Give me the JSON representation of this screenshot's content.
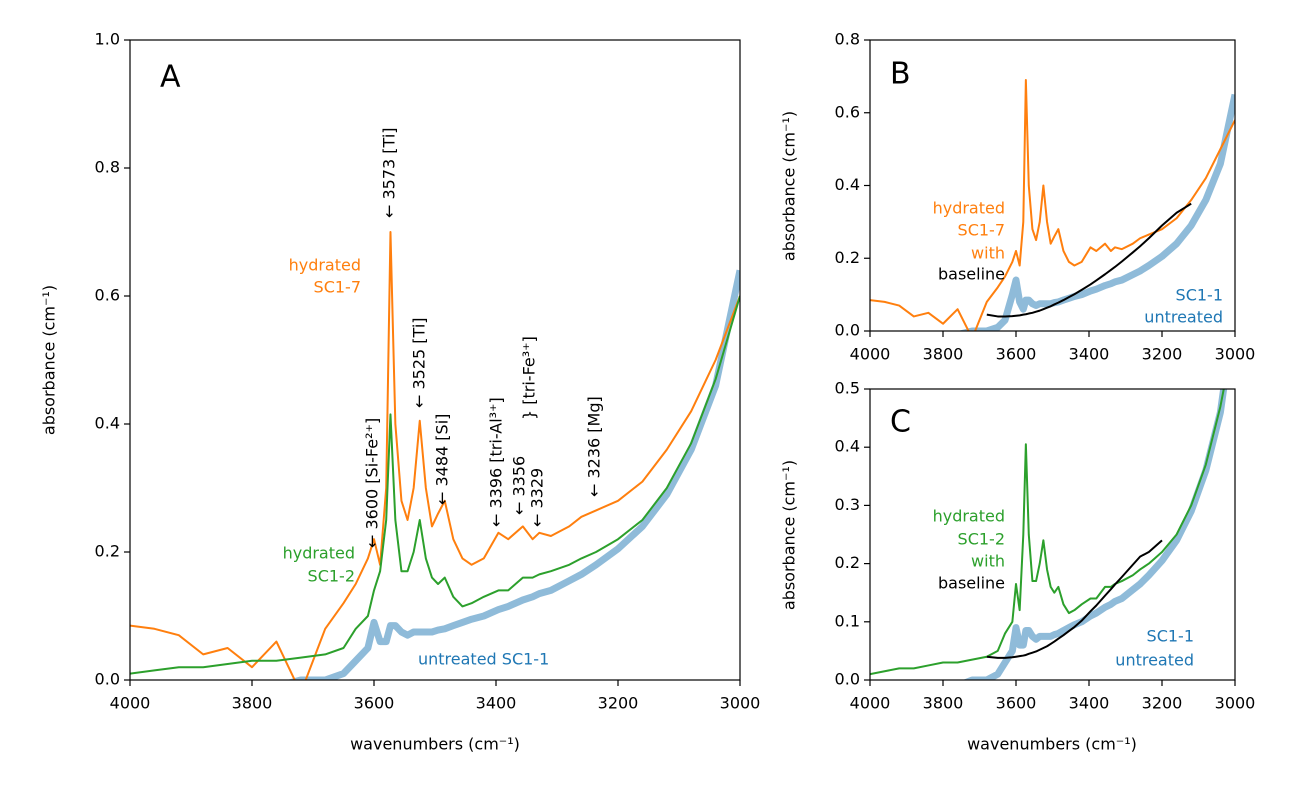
{
  "chart_data": [
    {
      "type": "line",
      "panel_label": "A",
      "xlabel": "wavenumbers (cm⁻¹)",
      "ylabel": "absorbance (cm⁻¹)",
      "xlim": [
        4000,
        3000
      ],
      "xticks": [
        4000,
        3800,
        3600,
        3400,
        3200,
        3000
      ],
      "ylim": [
        0,
        1
      ],
      "yticks": [
        {
          "value": 0,
          "label": "0.0"
        },
        0.2,
        0.4,
        0.6,
        0.8,
        {
          "value": 1,
          "label": "1.0"
        }
      ],
      "x": [
        4000,
        3960,
        3920,
        3880,
        3840,
        3800,
        3760,
        3720,
        3680,
        3650,
        3630,
        3610,
        3600,
        3590,
        3580,
        3573,
        3565,
        3555,
        3545,
        3535,
        3525,
        3515,
        3505,
        3495,
        3484,
        3470,
        3455,
        3440,
        3420,
        3396,
        3380,
        3356,
        3340,
        3329,
        3310,
        3280,
        3260,
        3236,
        3200,
        3160,
        3120,
        3080,
        3040,
        3000
      ],
      "series": [
        {
          "color": "#1f77b4",
          "linewidth": 7,
          "alpha": 0.5,
          "values": [
            null,
            null,
            null,
            null,
            null,
            -0.03,
            -0.01,
            0,
            0,
            0.01,
            0.03,
            0.05,
            0.09,
            0.06,
            0.06,
            0.085,
            0.085,
            0.075,
            0.07,
            0.075,
            0.075,
            0.075,
            0.075,
            0.078,
            0.08,
            0.085,
            0.09,
            0.095,
            0.1,
            0.11,
            0.115,
            0.125,
            0.13,
            0.135,
            0.14,
            0.155,
            0.165,
            0.18,
            0.205,
            0.24,
            0.29,
            0.36,
            0.46,
            0.64
          ]
        },
        {
          "color": "#ff7f0e",
          "linewidth": 2,
          "alpha": 1,
          "values": [
            0.085,
            0.08,
            0.07,
            0.04,
            0.05,
            0.02,
            0.06,
            -0.02,
            0.08,
            0.12,
            0.15,
            0.19,
            0.22,
            0.18,
            0.3,
            0.7,
            0.4,
            0.28,
            0.25,
            0.3,
            0.405,
            0.3,
            0.24,
            0.26,
            0.28,
            0.22,
            0.19,
            0.18,
            0.19,
            0.23,
            0.22,
            0.24,
            0.22,
            0.23,
            0.225,
            0.24,
            0.255,
            0.265,
            0.28,
            0.31,
            0.36,
            0.42,
            0.5,
            0.6
          ]
        },
        {
          "color": "#2ca02c",
          "linewidth": 2,
          "alpha": 1,
          "values": [
            0.01,
            0.015,
            0.02,
            0.02,
            0.025,
            0.03,
            0.03,
            0.035,
            0.04,
            0.05,
            0.08,
            0.1,
            0.14,
            0.17,
            0.25,
            0.415,
            0.25,
            0.17,
            0.17,
            0.2,
            0.25,
            0.19,
            0.16,
            0.15,
            0.16,
            0.13,
            0.115,
            0.12,
            0.13,
            0.14,
            0.14,
            0.16,
            0.16,
            0.165,
            0.17,
            0.18,
            0.19,
            0.2,
            0.22,
            0.25,
            0.3,
            0.37,
            0.47,
            0.6
          ]
        }
      ],
      "annotations": [
        "← 3600 [Si-Fe²⁺]",
        "← 3573 [Ti]",
        "← 3525 [Ti]",
        "← 3484 [Si]",
        "← 3396 [tri-Al³⁺]",
        "← 3356",
        "} [tri-Fe³⁺]",
        "← 3329",
        "← 3236 [Mg]"
      ],
      "labels": [
        {
          "text": "hydrated",
          "color": "#ff7f0e"
        },
        {
          "text": "SC1-7",
          "color": "#ff7f0e"
        },
        {
          "text": "hydrated",
          "color": "#2ca02c"
        },
        {
          "text": "SC1-2",
          "color": "#2ca02c"
        },
        {
          "text": "untreated SC1-1",
          "color": "#1f77b4"
        }
      ]
    },
    {
      "type": "line",
      "panel_label": "B",
      "ylabel": "absorbance (cm⁻¹)",
      "xlim": [
        4000,
        3000
      ],
      "xticks": [
        4000,
        3800,
        3600,
        3400,
        3200,
        3000
      ],
      "ylim": [
        0,
        0.8
      ],
      "yticks": [
        {
          "value": 0,
          "label": "0.0"
        },
        0.2,
        0.4,
        0.6,
        0.8
      ],
      "x": [
        4000,
        3960,
        3920,
        3880,
        3840,
        3800,
        3760,
        3720,
        3680,
        3650,
        3630,
        3610,
        3600,
        3590,
        3580,
        3573,
        3565,
        3555,
        3545,
        3535,
        3525,
        3515,
        3505,
        3495,
        3484,
        3470,
        3455,
        3440,
        3420,
        3396,
        3380,
        3356,
        3340,
        3329,
        3310,
        3280,
        3260,
        3236,
        3200,
        3160,
        3120,
        3080,
        3040,
        3000
      ],
      "series": [
        {
          "color": "#1f77b4",
          "linewidth": 7,
          "alpha": 0.5,
          "values": [
            null,
            null,
            null,
            null,
            null,
            -0.03,
            -0.01,
            0,
            0,
            0.01,
            0.03,
            0.1,
            0.14,
            0.08,
            0.06,
            0.085,
            0.085,
            0.075,
            0.07,
            0.075,
            0.075,
            0.075,
            0.075,
            0.078,
            0.08,
            0.085,
            0.09,
            0.095,
            0.1,
            0.11,
            0.115,
            0.125,
            0.13,
            0.135,
            0.14,
            0.155,
            0.165,
            0.18,
            0.205,
            0.24,
            0.29,
            0.36,
            0.46,
            0.65
          ]
        },
        {
          "color": "#ff7f0e",
          "linewidth": 2,
          "alpha": 1,
          "values": [
            0.085,
            0.08,
            0.07,
            0.04,
            0.05,
            0.02,
            0.06,
            -0.02,
            0.08,
            0.12,
            0.15,
            0.19,
            0.22,
            0.18,
            0.3,
            0.69,
            0.4,
            0.28,
            0.25,
            0.3,
            0.4,
            0.3,
            0.24,
            0.26,
            0.28,
            0.22,
            0.19,
            0.18,
            0.19,
            0.23,
            0.22,
            0.24,
            0.22,
            0.23,
            0.225,
            0.24,
            0.255,
            0.265,
            0.28,
            0.31,
            0.36,
            0.42,
            0.5,
            0.58
          ]
        },
        {
          "color": "#000000",
          "linewidth": 2,
          "alpha": 1,
          "values": [
            null,
            null,
            null,
            null,
            null,
            null,
            null,
            null,
            0.045,
            0.04,
            0.04,
            0.041,
            0.042,
            0.043,
            0.045,
            0.046,
            0.048,
            0.05,
            0.053,
            0.056,
            0.06,
            0.064,
            0.068,
            0.073,
            0.078,
            0.085,
            0.093,
            0.101,
            0.113,
            0.128,
            0.139,
            0.156,
            0.168,
            0.176,
            0.191,
            0.216,
            0.233,
            0.255,
            0.29,
            0.325,
            0.35,
            null,
            null,
            null
          ]
        }
      ],
      "annotations": [],
      "labels": [
        {
          "text": "hydrated",
          "color": "#ff7f0e"
        },
        {
          "text": "SC1-7",
          "color": "#ff7f0e"
        },
        {
          "text": "with",
          "color": "#ff7f0e"
        },
        {
          "text": "baseline",
          "color": "#000000"
        },
        {
          "text": "SC1-1",
          "color": "#1f77b4"
        },
        {
          "text": "untreated",
          "color": "#1f77b4"
        }
      ]
    },
    {
      "type": "line",
      "panel_label": "C",
      "xlabel": "wavenumbers (cm⁻¹)",
      "ylabel": "absorbance (cm⁻¹)",
      "xlim": [
        4000,
        3000
      ],
      "xticks": [
        4000,
        3800,
        3600,
        3400,
        3200,
        3000
      ],
      "ylim": [
        0,
        0.5
      ],
      "yticks": [
        {
          "value": 0,
          "label": "0.0"
        },
        0.1,
        0.2,
        0.3,
        0.4,
        0.5
      ],
      "x": [
        4000,
        3960,
        3920,
        3880,
        3840,
        3800,
        3760,
        3720,
        3680,
        3650,
        3630,
        3610,
        3600,
        3590,
        3580,
        3573,
        3565,
        3555,
        3545,
        3535,
        3525,
        3515,
        3505,
        3495,
        3484,
        3470,
        3455,
        3440,
        3420,
        3396,
        3380,
        3356,
        3340,
        3329,
        3310,
        3280,
        3260,
        3236,
        3200,
        3160,
        3120,
        3080,
        3040,
        3000
      ],
      "series": [
        {
          "color": "#1f77b4",
          "linewidth": 7,
          "alpha": 0.5,
          "values": [
            null,
            null,
            null,
            null,
            null,
            -0.03,
            -0.01,
            0,
            0,
            0.01,
            0.03,
            0.05,
            0.09,
            0.06,
            0.06,
            0.085,
            0.085,
            0.075,
            0.07,
            0.075,
            0.075,
            0.075,
            0.075,
            0.078,
            0.08,
            0.085,
            0.09,
            0.095,
            0.1,
            0.11,
            0.115,
            0.125,
            0.13,
            0.135,
            0.14,
            0.155,
            0.165,
            0.18,
            0.205,
            0.24,
            0.29,
            0.36,
            0.46,
            0.64
          ]
        },
        {
          "color": "#2ca02c",
          "linewidth": 2,
          "alpha": 1,
          "values": [
            0.01,
            0.015,
            0.02,
            0.02,
            0.025,
            0.03,
            0.03,
            0.035,
            0.04,
            0.05,
            0.08,
            0.1,
            0.165,
            0.12,
            0.25,
            0.405,
            0.25,
            0.17,
            0.17,
            0.2,
            0.24,
            0.19,
            0.16,
            0.15,
            0.16,
            0.13,
            0.115,
            0.12,
            0.13,
            0.14,
            0.14,
            0.16,
            0.16,
            0.165,
            0.17,
            0.18,
            0.19,
            0.2,
            0.22,
            0.25,
            0.3,
            0.37,
            0.47,
            0.6
          ]
        },
        {
          "color": "#000000",
          "linewidth": 2,
          "alpha": 1,
          "values": [
            null,
            null,
            null,
            null,
            null,
            null,
            null,
            null,
            0.04,
            0.038,
            0.038,
            0.039,
            0.04,
            0.041,
            0.042,
            0.043,
            0.045,
            0.047,
            0.049,
            0.052,
            0.055,
            0.058,
            0.062,
            0.066,
            0.071,
            0.077,
            0.084,
            0.091,
            0.102,
            0.118,
            0.128,
            0.145,
            0.156,
            0.164,
            0.177,
            0.198,
            0.212,
            0.22,
            0.24,
            null,
            null,
            null,
            null,
            null
          ]
        }
      ],
      "annotations": [],
      "labels": [
        {
          "text": "hydrated",
          "color": "#2ca02c"
        },
        {
          "text": "SC1-2",
          "color": "#2ca02c"
        },
        {
          "text": "with",
          "color": "#2ca02c"
        },
        {
          "text": "baseline",
          "color": "#000000"
        },
        {
          "text": "SC1-1",
          "color": "#1f77b4"
        },
        {
          "text": "untreated",
          "color": "#1f77b4"
        }
      ]
    }
  ]
}
